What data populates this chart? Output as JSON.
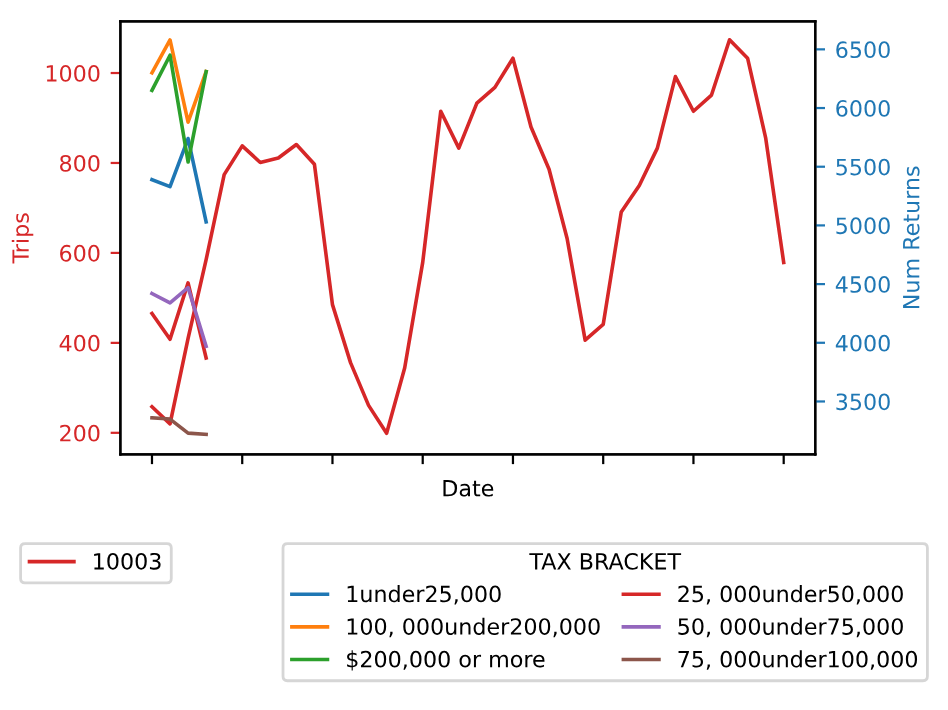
{
  "chart_data": {
    "type": "line",
    "xlabel": "Date",
    "ylabel": "Trips",
    "y2label": "Num Returns",
    "legend_title": "TAX BRACKET",
    "categories": [
      null,
      null,
      null,
      null,
      null,
      null,
      null,
      null,
      null,
      null,
      null,
      null,
      null,
      null,
      null,
      null,
      null,
      null,
      null,
      null,
      null,
      null,
      null,
      null,
      null,
      null,
      null,
      null,
      null,
      null,
      null,
      null,
      null,
      null,
      null,
      null
    ],
    "ylim": [
      152,
      1115
    ],
    "yticks": [
      200,
      400,
      600,
      800,
      1000
    ],
    "y2lim": [
      3049,
      6739
    ],
    "y2ticks": [
      3500,
      4000,
      4500,
      5000,
      5500,
      6000,
      6500
    ],
    "legend": "bottom",
    "series": [
      {
        "name": "10003",
        "color": "#d62728",
        "values": [
          258,
          220,
          410,
          585,
          774,
          838,
          801,
          811,
          841,
          797,
          485,
          356,
          261,
          199,
          344,
          579,
          915,
          833,
          933,
          968,
          1033,
          880,
          786,
          632,
          406,
          441,
          691,
          750,
          833,
          992,
          915,
          951,
          1074,
          1033,
          856,
          579
        ]
      },
      {
        "name": "1under25,000",
        "axis": "y2",
        "color": "#1f77b4",
        "values": [
          5390,
          5330,
          5740,
          5030,
          null,
          null,
          null,
          null,
          null,
          null,
          null,
          null,
          null,
          null,
          null,
          null,
          null,
          null,
          null,
          null,
          null,
          null,
          null,
          null,
          null,
          null,
          null,
          null,
          null,
          null,
          null,
          null,
          null,
          null,
          null,
          null
        ]
      },
      {
        "name": "100, 000under200,000",
        "axis": "y2",
        "color": "#ff7f0e",
        "values": [
          6300,
          6580,
          5880,
          6310,
          null,
          null,
          null,
          null,
          null,
          null,
          null,
          null,
          null,
          null,
          null,
          null,
          null,
          null,
          null,
          null,
          null,
          null,
          null,
          null,
          null,
          null,
          null,
          null,
          null,
          null,
          null,
          null,
          null,
          null,
          null,
          null
        ]
      },
      {
        "name": "$200,000 or more",
        "axis": "y2",
        "color": "#2ca02c",
        "values": [
          6150,
          6450,
          5540,
          6310,
          null,
          null,
          null,
          null,
          null,
          null,
          null,
          null,
          null,
          null,
          null,
          null,
          null,
          null,
          null,
          null,
          null,
          null,
          null,
          null,
          null,
          null,
          null,
          null,
          null,
          null,
          null,
          null,
          null,
          null,
          null,
          null
        ]
      },
      {
        "name": "25, 000under50,000",
        "axis": "y2",
        "color": "#d62728",
        "values": [
          4250,
          4030,
          4510,
          3870,
          null,
          null,
          null,
          null,
          null,
          null,
          null,
          null,
          null,
          null,
          null,
          null,
          null,
          null,
          null,
          null,
          null,
          null,
          null,
          null,
          null,
          null,
          null,
          null,
          null,
          null,
          null,
          null,
          null,
          null,
          null,
          null
        ]
      },
      {
        "name": "50, 000under75,000",
        "axis": "y2",
        "color": "#9467bd",
        "values": [
          4420,
          4340,
          4470,
          3970,
          null,
          null,
          null,
          null,
          null,
          null,
          null,
          null,
          null,
          null,
          null,
          null,
          null,
          null,
          null,
          null,
          null,
          null,
          null,
          null,
          null,
          null,
          null,
          null,
          null,
          null,
          null,
          null,
          null,
          null,
          null,
          null
        ]
      },
      {
        "name": "75, 000under100,000",
        "axis": "y2",
        "color": "#8c564b",
        "values": [
          3360,
          3350,
          3230,
          3220,
          null,
          null,
          null,
          null,
          null,
          null,
          null,
          null,
          null,
          null,
          null,
          null,
          null,
          null,
          null,
          null,
          null,
          null,
          null,
          null,
          null,
          null,
          null,
          null,
          null,
          null,
          null,
          null,
          null,
          null,
          null,
          null
        ]
      }
    ]
  }
}
